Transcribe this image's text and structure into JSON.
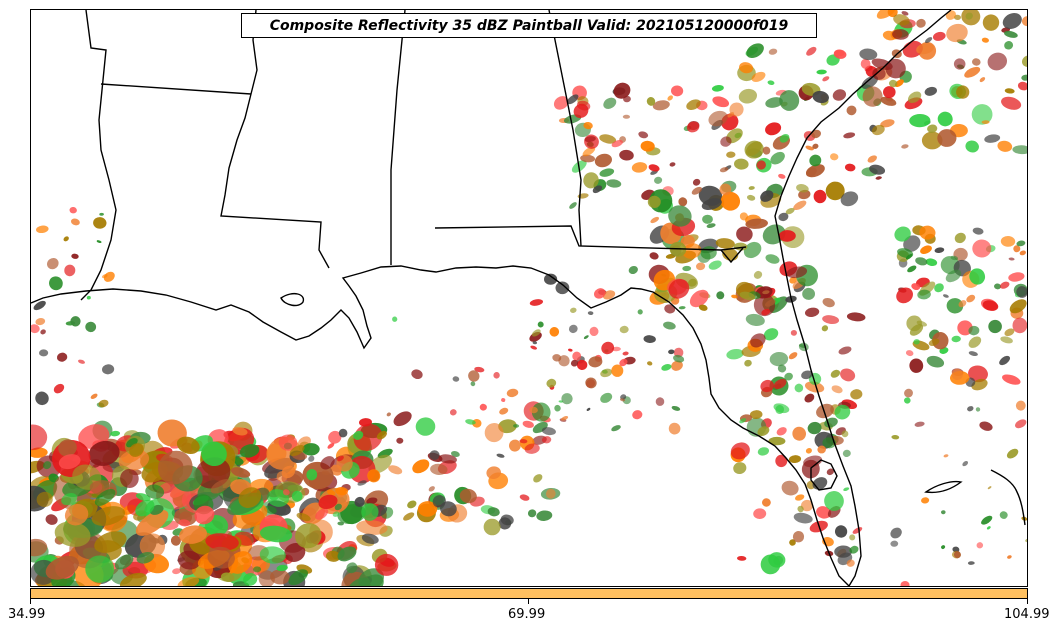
{
  "title": "Composite Reflectivity 35 dBZ Paintball Valid: 202105120000f019",
  "colorbar": {
    "color": "#ffc060",
    "tick_labels": [
      "34.99",
      "69.99",
      "104.99"
    ],
    "range": [
      34.99,
      104.99
    ]
  },
  "paintball_colors": [
    "#e41a1c",
    "#ff7f00",
    "#228b22",
    "#2ecc40",
    "#8b1a1a",
    "#a67c00",
    "#f08030",
    "#444444",
    "#9a9a28",
    "#ff4d4d",
    "#3a8a3a",
    "#b05a30"
  ]
}
